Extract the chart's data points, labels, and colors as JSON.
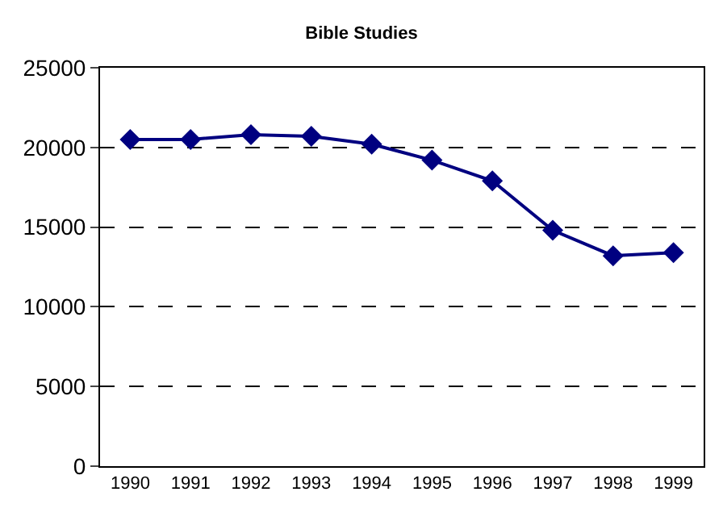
{
  "chart_data": {
    "type": "line",
    "title": "Bible Studies",
    "categories": [
      "1990",
      "1991",
      "1992",
      "1993",
      "1994",
      "1995",
      "1996",
      "1997",
      "1998",
      "1999"
    ],
    "series": [
      {
        "color": "#000080",
        "values": [
          20500,
          20500,
          20800,
          20700,
          20200,
          19200,
          17900,
          14800,
          13200,
          13400
        ]
      }
    ],
    "ylim": [
      0,
      25000
    ],
    "yticks": [
      0,
      5000,
      10000,
      15000,
      20000,
      25000
    ],
    "grid": "y",
    "legend": false,
    "marker": "diamond",
    "line_style": "solid"
  }
}
